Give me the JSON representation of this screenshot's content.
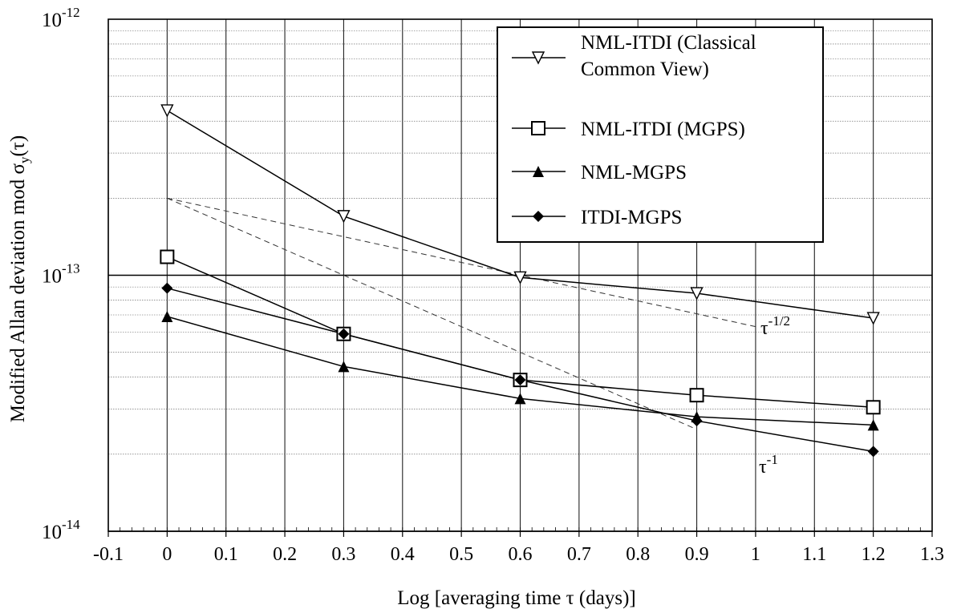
{
  "chart_data": {
    "type": "line",
    "title": "",
    "xlabel": "Log [averaging time τ (days)]",
    "ylabel_main": "Modified Allan deviation mod σ",
    "ylabel_sub": "y",
    "ylabel_tail": "(τ)",
    "xlim": [
      -0.1,
      1.3
    ],
    "ylim": [
      1e-14,
      1e-12
    ],
    "yscale": "log",
    "grid": true,
    "legend_position": "top-right",
    "x_ticks": [
      {
        "value": -0.1,
        "label": "-0.1"
      },
      {
        "value": 0,
        "label": "0"
      },
      {
        "value": 0.1,
        "label": "0.1"
      },
      {
        "value": 0.2,
        "label": "0.2"
      },
      {
        "value": 0.3,
        "label": "0.3"
      },
      {
        "value": 0.4,
        "label": "0.4"
      },
      {
        "value": 0.5,
        "label": "0.5"
      },
      {
        "value": 0.6,
        "label": "0.6"
      },
      {
        "value": 0.7,
        "label": "0.7"
      },
      {
        "value": 0.8,
        "label": "0.8"
      },
      {
        "value": 0.9,
        "label": "0.9"
      },
      {
        "value": 1,
        "label": "1"
      },
      {
        "value": 1.1,
        "label": "1.1"
      },
      {
        "value": 1.2,
        "label": "1.2"
      },
      {
        "value": 1.3,
        "label": "1.3"
      }
    ],
    "y_ticks": [
      {
        "value": 1e-12,
        "base": "10",
        "exp": "-12"
      },
      {
        "value": 1e-13,
        "base": "10",
        "exp": "-13"
      },
      {
        "value": 1e-14,
        "base": "10",
        "exp": "-14"
      }
    ],
    "series": [
      {
        "name": "NML-ITDI (Classical Common View)",
        "legend_lines": [
          "NML-ITDI (Classical",
          "Common View)"
        ],
        "marker": "triangle-down-open",
        "x": [
          0,
          0.3,
          0.6,
          0.9,
          1.2
        ],
        "y": [
          4.4e-13,
          1.7e-13,
          9.8e-14,
          8.5e-14,
          6.8e-14
        ]
      },
      {
        "name": "NML-ITDI (MGPS)",
        "legend_lines": [
          "NML-ITDI (MGPS)"
        ],
        "marker": "square-open",
        "x": [
          0,
          0.3,
          0.6,
          0.9,
          1.2
        ],
        "y": [
          1.18e-13,
          5.9e-14,
          3.9e-14,
          3.4e-14,
          3.05e-14
        ]
      },
      {
        "name": "NML-MGPS",
        "legend_lines": [
          "NML-MGPS"
        ],
        "marker": "triangle-up-filled",
        "x": [
          0,
          0.3,
          0.6,
          0.9,
          1.2
        ],
        "y": [
          6.9e-14,
          4.4e-14,
          3.3e-14,
          2.8e-14,
          2.6e-14
        ]
      },
      {
        "name": "ITDI-MGPS",
        "legend_lines": [
          "ITDI-MGPS"
        ],
        "marker": "diamond-filled",
        "x": [
          0,
          0.3,
          0.6,
          0.9,
          1.2
        ],
        "y": [
          8.9e-14,
          5.9e-14,
          3.9e-14,
          2.7e-14,
          2.05e-14
        ]
      }
    ],
    "reference_lines": [
      {
        "label_base": "τ",
        "label_exp": "-1/2",
        "x": [
          0,
          1.0
        ],
        "y": [
          2e-13,
          6.3e-14
        ]
      },
      {
        "label_base": "τ",
        "label_exp": "-1",
        "x": [
          0,
          0.9
        ],
        "y": [
          2e-13,
          2.5e-14
        ]
      }
    ]
  }
}
